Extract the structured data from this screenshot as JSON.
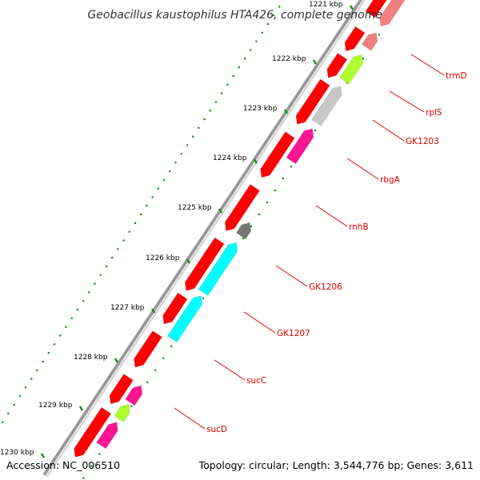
{
  "title": "Geobacillus kaustophilus HTA426, complete genome",
  "footer": {
    "accession": "Accession: NC_006510",
    "topology": "Topology: circular; Length: 3,544,776 bp; Genes: 3,611"
  },
  "colors": {
    "forward_cds": "#ff0000",
    "reverse_cds": "#f08080",
    "label": "#e00000",
    "tick": "#008000",
    "backbone": "#888888"
  },
  "scale": {
    "ticks": [
      "1221 kbp",
      "1222 kbp",
      "1223 kbp",
      "1224 kbp",
      "1225 kbp",
      "1226 kbp",
      "1227 kbp",
      "1228 kbp",
      "1229 kbp",
      "1230 kbp"
    ]
  },
  "gene_labels": [
    "trmD",
    "rplS",
    "GK1203",
    "rbgA",
    "rnhB",
    "GK1206",
    "GK1207",
    "sucC",
    "sucD"
  ]
}
